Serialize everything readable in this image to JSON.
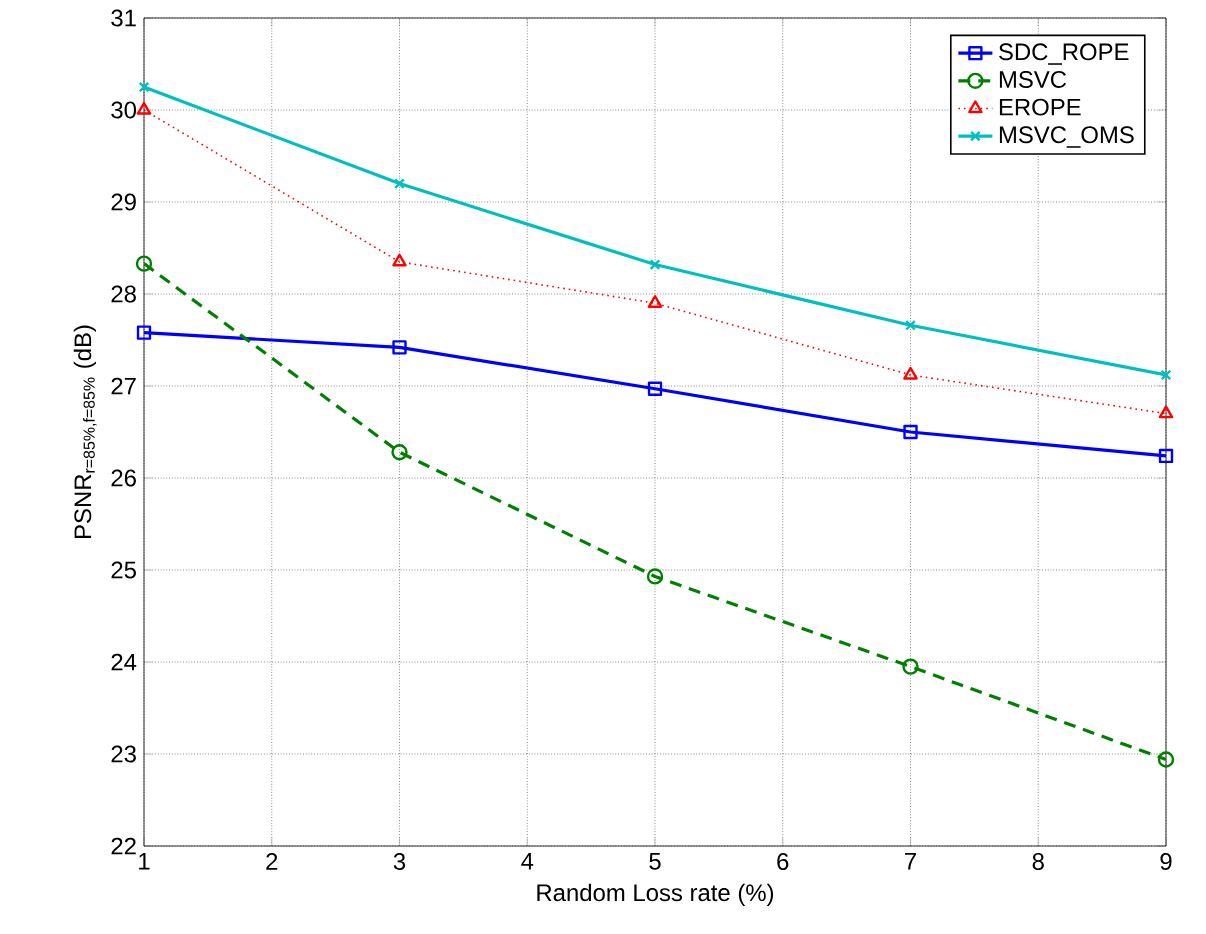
{
  "chart_data": {
    "type": "line",
    "xlabel": "Random Loss rate (%)",
    "ylabel": "PSNR$_{r=85%,f=85%}$ (dB)",
    "x": [
      1,
      3,
      5,
      7,
      9
    ],
    "series": [
      {
        "name": "SDC_ROPE",
        "color": "#0000ff",
        "marker": "square",
        "line_style": "solid",
        "values": [
          27.58,
          27.42,
          26.97,
          26.5,
          26.24
        ]
      },
      {
        "name": "MSVC",
        "color": "#008000",
        "marker": "circle",
        "line_style": "dashed",
        "values": [
          28.33,
          26.28,
          24.93,
          23.95,
          22.94
        ]
      },
      {
        "name": "EROPE",
        "color": "#ff0000",
        "marker": "triangle",
        "line_style": "dotted",
        "values": [
          30.0,
          28.35,
          27.9,
          27.12,
          26.7
        ]
      },
      {
        "name": "MSVC_OMS",
        "color": "#00bfbf",
        "marker": "cross",
        "line_style": "solid",
        "values": [
          30.25,
          29.2,
          28.32,
          27.66,
          27.12
        ]
      }
    ],
    "xlim": [
      1,
      9
    ],
    "ylim": [
      22,
      31
    ],
    "xticks": [
      1,
      2,
      3,
      4,
      5,
      6,
      7,
      8,
      9
    ],
    "yticks": [
      22,
      23,
      24,
      25,
      26,
      27,
      28,
      29,
      30,
      31
    ],
    "grid": true,
    "legend": "top right"
  }
}
